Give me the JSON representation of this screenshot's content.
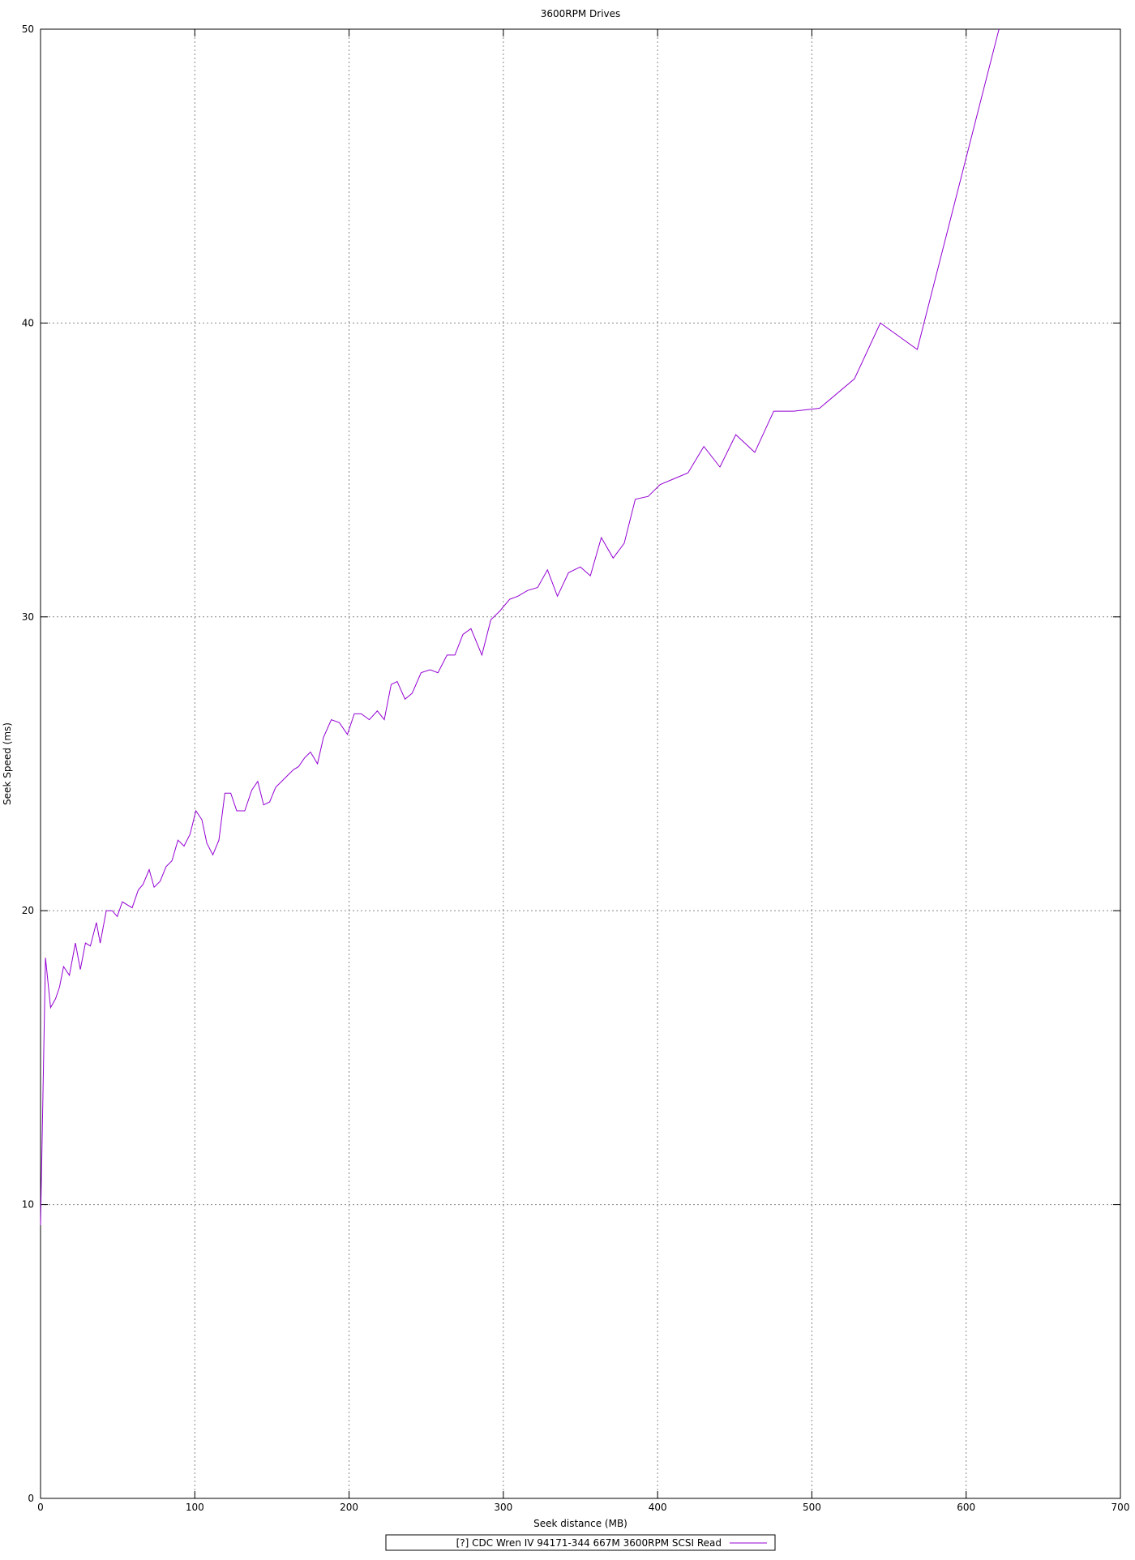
{
  "chart_data": {
    "type": "line",
    "title": "3600RPM Drives",
    "xlabel": "Seek distance (MB)",
    "ylabel": "Seek Speed (ms)",
    "xlim": [
      0,
      700
    ],
    "ylim": [
      0,
      50
    ],
    "xticks": [
      0,
      100,
      200,
      300,
      400,
      500,
      600,
      700
    ],
    "yticks": [
      0,
      10,
      20,
      30,
      40,
      50
    ],
    "grid": true,
    "legend_placement": "bottom-center",
    "series": [
      {
        "name": "[?] CDC Wren IV 94171-344 667M 3600RPM SCSI Read",
        "color": "#9400d3",
        "x": [
          0,
          3.2,
          6.5,
          9.7,
          12.3,
          14.9,
          18.7,
          22.6,
          25.8,
          29.1,
          32.3,
          36.2,
          38.7,
          42.6,
          46.5,
          49.7,
          53,
          59.4,
          63.3,
          66.5,
          70.4,
          73.6,
          77.5,
          81.4,
          85.2,
          89.1,
          93,
          96.9,
          100.7,
          104.6,
          107.8,
          111.7,
          115.6,
          119.5,
          123.3,
          127.2,
          132.4,
          136.9,
          140.8,
          144.6,
          148.5,
          152.4,
          158.2,
          164,
          167.2,
          171.1,
          175,
          179.5,
          183.4,
          188.5,
          193.7,
          198.9,
          203.4,
          207.9,
          213.1,
          218.3,
          222.8,
          227.3,
          231.2,
          236.3,
          240.9,
          246.7,
          252.5,
          257.6,
          263.5,
          268.6,
          273.8,
          279,
          286.1,
          291.9,
          297.7,
          304.1,
          309.3,
          315.8,
          322.2,
          328.6,
          335.1,
          342.2,
          349.9,
          356.4,
          363.5,
          371.2,
          378.3,
          385.5,
          393.9,
          401.6,
          410.6,
          419.7,
          430,
          440.4,
          450.7,
          463,
          475.3,
          488.2,
          505,
          527.6,
          544.4,
          568.3,
          621.3
        ],
        "y": [
          9.3,
          18.4,
          16.7,
          17.0,
          17.4,
          18.1,
          17.8,
          18.9,
          18.0,
          18.9,
          18.8,
          19.6,
          18.9,
          20.0,
          20.0,
          19.8,
          20.3,
          20.1,
          20.7,
          20.9,
          21.4,
          20.8,
          21.0,
          21.5,
          21.7,
          22.4,
          22.2,
          22.6,
          23.4,
          23.1,
          22.3,
          21.9,
          22.4,
          24.0,
          24.0,
          23.4,
          23.4,
          24.1,
          24.4,
          23.6,
          23.7,
          24.2,
          24.5,
          24.8,
          24.9,
          25.2,
          25.4,
          25.0,
          25.9,
          26.5,
          26.4,
          26.0,
          26.7,
          26.7,
          26.5,
          26.8,
          26.5,
          27.7,
          27.8,
          27.2,
          27.4,
          28.1,
          28.2,
          28.1,
          28.7,
          28.7,
          29.4,
          29.6,
          28.7,
          29.9,
          30.2,
          30.6,
          30.7,
          30.9,
          31.0,
          31.6,
          30.7,
          31.5,
          31.7,
          31.4,
          32.7,
          32.0,
          32.5,
          34.0,
          34.1,
          34.5,
          34.7,
          34.9,
          35.8,
          35.1,
          36.2,
          35.6,
          37.0,
          37.0,
          37.1,
          38.1,
          40.0,
          39.1,
          50.0
        ]
      }
    ]
  }
}
